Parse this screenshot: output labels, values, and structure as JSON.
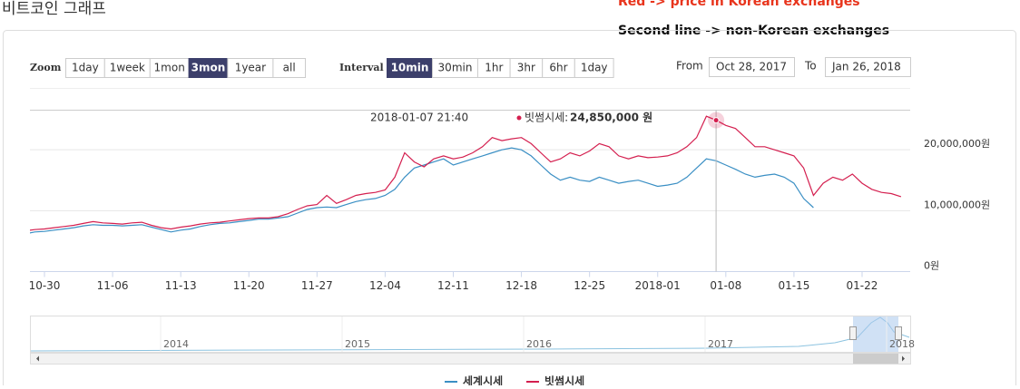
{
  "page_title": "비트코인 그래프",
  "annotations": [
    "Red -> price in Korean exchanges",
    "Second line -> non-Korean exchanges"
  ],
  "controls": {
    "zoom_label": "Zoom",
    "zoom_options": [
      "1day",
      "1week",
      "1mon",
      "3mon",
      "1year",
      "all"
    ],
    "zoom_active": 3,
    "interval_label": "Interval",
    "interval_options": [
      "10min",
      "30min",
      "1hr",
      "3hr",
      "6hr",
      "1day"
    ],
    "interval_active": 0,
    "from_label": "From",
    "from_value": "Oct 28, 2017",
    "to_label": "To",
    "to_value": "Jan 26, 2018"
  },
  "tooltip": {
    "time": "2018-01-07 21:40",
    "series_label": "빗썸시세:",
    "value_label": "24,850,000 원",
    "index": 71,
    "series": 1
  },
  "navigator": {
    "labels": [
      "2014",
      "2015",
      "2016",
      "2017",
      "2018"
    ]
  },
  "chart_data": {
    "type": "line",
    "categories": [
      null,
      null,
      "10-30",
      null,
      null,
      null,
      null,
      null,
      null,
      "11-06",
      null,
      null,
      null,
      null,
      null,
      null,
      "11-13",
      null,
      null,
      null,
      null,
      null,
      null,
      "11-20",
      null,
      null,
      null,
      null,
      null,
      null,
      "11-27",
      null,
      null,
      null,
      null,
      null,
      null,
      "12-04",
      null,
      null,
      null,
      null,
      null,
      null,
      "12-11",
      null,
      null,
      null,
      null,
      null,
      null,
      "12-18",
      null,
      null,
      null,
      null,
      null,
      null,
      "12-25",
      null,
      null,
      null,
      null,
      null,
      null,
      "2018-01",
      null,
      null,
      null,
      null,
      null,
      null,
      "01-08",
      null,
      null,
      null,
      null,
      null,
      null,
      "01-15",
      null,
      null,
      null,
      null,
      null,
      null,
      "01-22",
      null,
      null,
      null,
      null
    ],
    "ylim": [
      0,
      26500000
    ],
    "yticks": [
      {
        "value": 0,
        "label": "0원"
      },
      {
        "value": 10000000,
        "label": "10,000,000원"
      },
      {
        "value": 20000000,
        "label": "20,000,000원"
      }
    ],
    "grid": true,
    "series": [
      {
        "name": "세계시세",
        "color": "#3a8fc4",
        "values": [
          6200000,
          6500000,
          6600000,
          6800000,
          7000000,
          7200000,
          7500000,
          7700000,
          7600000,
          7600000,
          7500000,
          7600000,
          7700000,
          7300000,
          6900000,
          6500000,
          6800000,
          7000000,
          7400000,
          7700000,
          7900000,
          8000000,
          8200000,
          8400000,
          8600000,
          8600000,
          8800000,
          9000000,
          9600000,
          10200000,
          10500000,
          10600000,
          10500000,
          11000000,
          11500000,
          11800000,
          12000000,
          12500000,
          13500000,
          15500000,
          17000000,
          17500000,
          18000000,
          18500000,
          17500000,
          18000000,
          18500000,
          19000000,
          19500000,
          20000000,
          20300000,
          20000000,
          19000000,
          17500000,
          16000000,
          15000000,
          15500000,
          15000000,
          14800000,
          15500000,
          15000000,
          14500000,
          14800000,
          15000000,
          14500000,
          14000000,
          14200000,
          14500000,
          15500000,
          17000000,
          18500000,
          18200000,
          17500000,
          16800000,
          16000000,
          15500000,
          15800000,
          16000000,
          15500000,
          14500000,
          12000000,
          10500000,
          null,
          null,
          null,
          null,
          null,
          null,
          null,
          null,
          null
        ]
      },
      {
        "name": "빗썸시세",
        "color": "#d41f4f",
        "values": [
          6700000,
          6900000,
          7000000,
          7200000,
          7400000,
          7600000,
          7900000,
          8200000,
          8000000,
          7900000,
          7800000,
          8000000,
          8100000,
          7600000,
          7200000,
          7000000,
          7300000,
          7500000,
          7800000,
          8000000,
          8100000,
          8300000,
          8500000,
          8700000,
          8800000,
          8800000,
          9000000,
          9500000,
          10200000,
          10800000,
          11000000,
          12500000,
          11200000,
          11800000,
          12500000,
          12800000,
          13000000,
          13400000,
          15500000,
          19500000,
          18000000,
          17200000,
          18500000,
          19000000,
          18500000,
          18800000,
          19500000,
          20500000,
          22000000,
          21500000,
          21800000,
          22000000,
          21000000,
          19500000,
          18000000,
          18500000,
          19500000,
          19000000,
          19800000,
          21000000,
          20500000,
          19000000,
          18500000,
          19000000,
          18700000,
          18800000,
          19000000,
          19500000,
          20500000,
          22000000,
          25500000,
          24850000,
          24000000,
          23500000,
          22000000,
          20500000,
          20500000,
          20000000,
          19500000,
          19000000,
          17000000,
          12500000,
          14500000,
          15500000,
          15000000,
          16000000,
          14500000,
          13500000,
          13000000,
          12800000,
          12300000
        ]
      }
    ]
  }
}
